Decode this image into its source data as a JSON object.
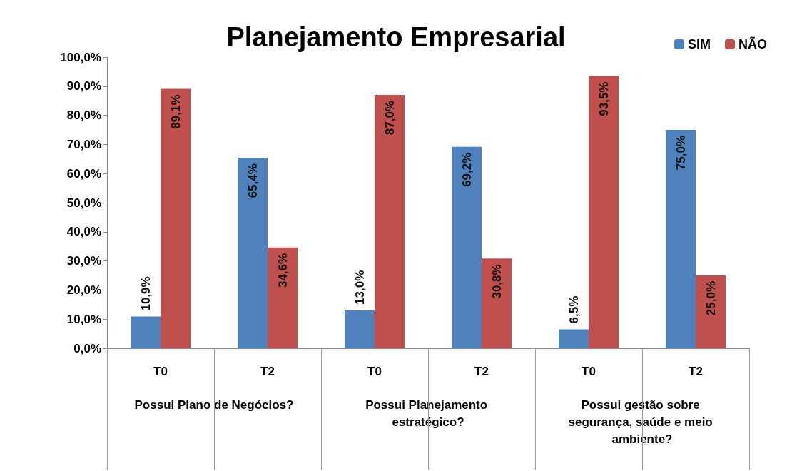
{
  "chart_data": {
    "type": "bar",
    "title": "Planejamento Empresarial",
    "categories": [
      "T0",
      "T2",
      "T0",
      "T2",
      "T0",
      "T2"
    ],
    "series": [
      {
        "name": "SIM",
        "color": "#4f81bd",
        "values": [
          10.9,
          65.4,
          13.0,
          69.2,
          6.5,
          75.0
        ],
        "value_labels": [
          "10,9%",
          "65,4%",
          "13,0%",
          "69,2%",
          "6,5%",
          "75,0%"
        ]
      },
      {
        "name": "NÃO",
        "color": "#c0504d",
        "values": [
          89.1,
          34.6,
          87.0,
          30.8,
          93.5,
          25.0
        ],
        "value_labels": [
          "89,1%",
          "34,6%",
          "87,0%",
          "30,8%",
          "93,5%",
          "25,0%"
        ]
      }
    ],
    "annotations": [
      "Possui Plano de Negócios?",
      "Possui Planejamento estratégico?",
      "Possui gestão sobre segurança, saúde e meio ambiente?"
    ],
    "ylim": [
      0,
      100
    ],
    "yticks": [
      {
        "value": 0,
        "label": "0,0%"
      },
      {
        "value": 10,
        "label": "10,0%"
      },
      {
        "value": 20,
        "label": "20,0%"
      },
      {
        "value": 30,
        "label": "30,0%"
      },
      {
        "value": 40,
        "label": "40,0%"
      },
      {
        "value": 50,
        "label": "50,0%"
      },
      {
        "value": 60,
        "label": "60,0%"
      },
      {
        "value": 70,
        "label": "70,0%"
      },
      {
        "value": 80,
        "label": "80,0%"
      },
      {
        "value": 90,
        "label": "90,0%"
      },
      {
        "value": 100,
        "label": "100,0%"
      }
    ],
    "grid": false,
    "legend": "top right"
  }
}
